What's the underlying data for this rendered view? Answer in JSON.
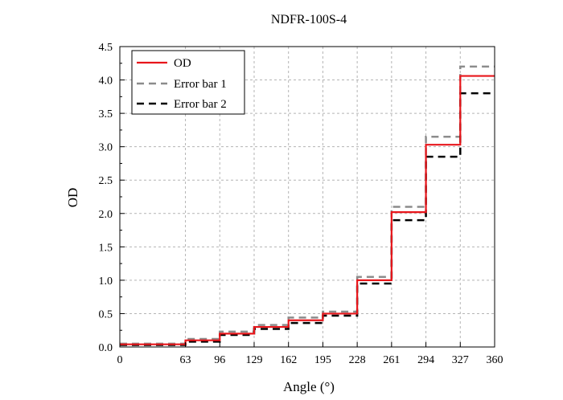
{
  "chart_data": {
    "type": "line",
    "title": "NDFR-100S-4",
    "xlabel": "Angle (°)",
    "ylabel": "OD",
    "xlim": [
      0,
      360
    ],
    "ylim": [
      0,
      4.5
    ],
    "grid": true,
    "legend_position": "top-left",
    "x_ticks": [
      "0",
      "63",
      "96",
      "129",
      "162",
      "195",
      "228",
      "261",
      "294",
      "327",
      "360"
    ],
    "y_ticks": [
      "0.0",
      "0.5",
      "1.0",
      "1.5",
      "2.0",
      "2.5",
      "3.0",
      "3.5",
      "4.0",
      "4.5"
    ],
    "series": [
      {
        "name": "OD",
        "color": "#e8161b",
        "dash": "solid",
        "x": [
          0,
          63,
          63,
          96,
          96,
          129,
          129,
          162,
          162,
          195,
          195,
          228,
          228,
          261,
          261,
          294,
          294,
          327,
          327,
          360
        ],
        "y": [
          0.04,
          0.04,
          0.1,
          0.1,
          0.2,
          0.2,
          0.3,
          0.3,
          0.4,
          0.4,
          0.5,
          0.5,
          1.0,
          1.0,
          2.02,
          2.02,
          3.03,
          3.03,
          4.06,
          4.06
        ]
      },
      {
        "name": "Error bar 1",
        "color": "#8c8c8c",
        "dash": "gray-dash",
        "x": [
          0,
          63,
          63,
          96,
          96,
          129,
          129,
          162,
          162,
          195,
          195,
          228,
          228,
          261,
          261,
          294,
          294,
          327,
          327,
          360
        ],
        "y": [
          0.05,
          0.05,
          0.12,
          0.12,
          0.23,
          0.23,
          0.33,
          0.33,
          0.44,
          0.44,
          0.53,
          0.53,
          1.05,
          1.05,
          2.1,
          2.1,
          3.15,
          3.15,
          4.2,
          4.2
        ]
      },
      {
        "name": "Error bar 2",
        "color": "#000000",
        "dash": "black-dash",
        "x": [
          0,
          63,
          63,
          96,
          96,
          129,
          129,
          162,
          162,
          195,
          195,
          228,
          228,
          261,
          261,
          294,
          294,
          327,
          327,
          360
        ],
        "y": [
          0.03,
          0.03,
          0.08,
          0.08,
          0.18,
          0.18,
          0.27,
          0.27,
          0.36,
          0.36,
          0.47,
          0.47,
          0.95,
          0.95,
          1.9,
          1.9,
          2.85,
          2.85,
          3.8,
          3.8
        ]
      }
    ]
  }
}
